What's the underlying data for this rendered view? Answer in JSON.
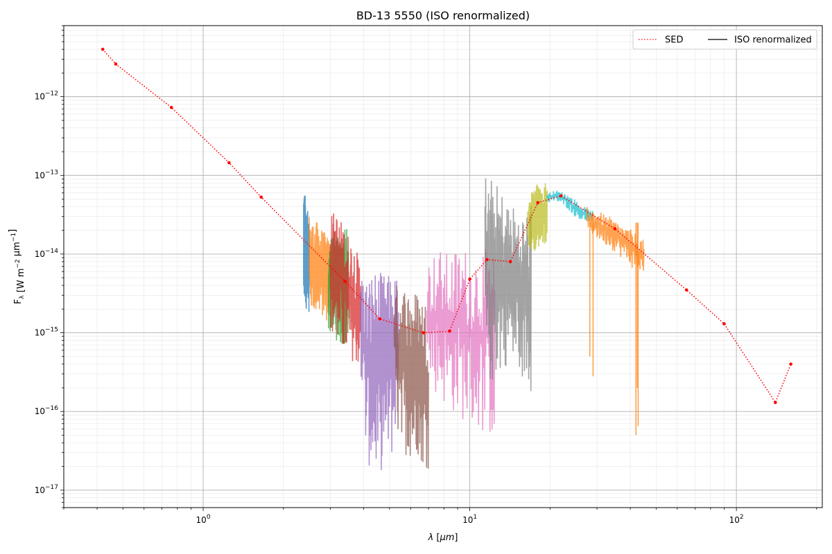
{
  "chart_data": {
    "type": "line",
    "title": "BD-13 5550 (ISO renormalized)",
    "xlabel": "λ [μm]",
    "ylabel": "F_λ [W m^-2 μm^-1]",
    "x_scale": "log",
    "y_scale": "log",
    "xlim": [
      0.3,
      210
    ],
    "ylim": [
      6e-18,
      8e-12
    ],
    "grid": true,
    "legend_position": "top-right",
    "x_ticks": [
      {
        "value": 1,
        "label": "10",
        "exp": "0"
      },
      {
        "value": 10,
        "label": "10",
        "exp": "1"
      },
      {
        "value": 100,
        "label": "10",
        "exp": "2"
      }
    ],
    "y_ticks": [
      {
        "value": 1e-17,
        "label": "10",
        "exp": "−17"
      },
      {
        "value": 1e-16,
        "label": "10",
        "exp": "−16"
      },
      {
        "value": 1e-15,
        "label": "10",
        "exp": "−15"
      },
      {
        "value": 1e-14,
        "label": "10",
        "exp": "−14"
      },
      {
        "value": 1e-13,
        "label": "10",
        "exp": "−13"
      },
      {
        "value": 1e-12,
        "label": "10",
        "exp": "−12"
      }
    ],
    "legend": [
      {
        "name": "SED",
        "color": "#ff0000",
        "style": "dotted"
      },
      {
        "name": "ISO renormalized",
        "color": "#000000",
        "style": "solid"
      }
    ],
    "sed": {
      "name": "SED",
      "color": "#ff0000",
      "x": [
        0.42,
        0.47,
        0.76,
        1.25,
        1.65,
        3.4,
        4.6,
        6.7,
        8.4,
        10.0,
        11.6,
        14.2,
        18.0,
        22.0,
        35.0,
        65.0,
        90.0,
        140.0,
        160.0
      ],
      "y": [
        4e-12,
        2.6e-12,
        7.3e-13,
        1.45e-13,
        5.3e-14,
        4.5e-15,
        1.5e-15,
        1e-15,
        1.05e-15,
        4.8e-15,
        8.5e-15,
        8e-15,
        4.5e-14,
        5.5e-14,
        2.1e-14,
        3.5e-15,
        1.3e-15,
        1.3e-16,
        4e-16
      ]
    },
    "spectra": [
      {
        "color": "#1f77b4",
        "x_range": [
          2.38,
          2.5
        ],
        "upper": [
          7.5e-14,
          6e-14,
          4e-14,
          3.5e-14,
          3e-14
        ],
        "lower": [
          2.2e-15,
          2.1e-15,
          2e-15,
          1.9e-15,
          1.8e-15
        ]
      },
      {
        "color": "#ff7f0e",
        "x_range": [
          2.5,
          3.0
        ],
        "upper": [
          3.3e-14,
          2.5e-14,
          2.6e-14,
          2.1e-14,
          1.8e-14,
          1.5e-14
        ],
        "lower": [
          1.9e-15,
          1.8e-15,
          1.7e-15,
          1.6e-15,
          1.4e-15,
          1.3e-15
        ]
      },
      {
        "color": "#2ca02c",
        "x_range": [
          2.95,
          3.5
        ],
        "upper": [
          1.6e-14,
          2.2e-14,
          1.8e-14,
          1.4e-14,
          2.6e-14,
          3e-14
        ],
        "lower": [
          1e-15,
          9.5e-16,
          8e-16,
          7e-16,
          6e-16,
          5.5e-16
        ]
      },
      {
        "color": "#d62728",
        "x_range": [
          3.0,
          3.9
        ],
        "upper": [
          3.3e-14,
          3.6e-14,
          2.8e-14,
          2.2e-14,
          1.6e-14,
          1.2e-14,
          8e-15
        ],
        "lower": [
          1e-15,
          8e-16,
          6e-16,
          5e-16,
          4.5e-16,
          4e-16,
          3.5e-16
        ]
      },
      {
        "color": "#9467bd",
        "x_range": [
          3.9,
          5.4
        ],
        "upper": [
          6e-15,
          5e-15,
          6.5e-15,
          6e-15,
          5.5e-15,
          5.5e-15,
          5e-15
        ],
        "lower": [
          3e-16,
          1.9e-17,
          2e-17,
          1.4e-17,
          3e-17,
          2.5e-17,
          1.5e-16
        ]
      },
      {
        "color": "#8c564b",
        "x_range": [
          5.2,
          7.0
        ],
        "upper": [
          4e-15,
          4.5e-15,
          4e-15,
          3.5e-15,
          3.5e-15,
          3e-15,
          2.5e-15
        ],
        "lower": [
          1.5e-16,
          3e-17,
          2.8e-17,
          2.5e-17,
          3e-17,
          2e-17,
          1.8e-17
        ]
      },
      {
        "color": "#e377c2",
        "x_range": [
          6.9,
          12.4
        ],
        "upper": [
          8e-15,
          1.2e-14,
          1e-14,
          1.3e-14,
          1.1e-14,
          1.2e-14,
          1e-14
        ],
        "lower": [
          2.5e-16,
          1.5e-16,
          1e-16,
          8e-17,
          6e-17,
          5e-17,
          4.5e-17
        ]
      },
      {
        "color": "#7f7f7f",
        "x_range": [
          11.4,
          17.0
        ],
        "upper": [
          1.1e-13,
          9e-14,
          7e-14,
          5e-14,
          4e-14,
          3.5e-14,
          5e-14
        ],
        "lower": [
          3e-16,
          2e-16,
          3e-16,
          4e-16,
          3e-16,
          2.5e-16,
          1.6e-16
        ]
      },
      {
        "color": "#bcbd22",
        "x_range": [
          16.5,
          19.5
        ],
        "upper": [
          5e-14,
          6.5e-14,
          8e-14,
          6e-14,
          1e-13
        ],
        "lower": [
          1.2e-14,
          1e-14,
          1.1e-14,
          1.3e-14,
          1.4e-14
        ]
      },
      {
        "color": "#17becf",
        "x_range": [
          19.5,
          29.0
        ],
        "upper": [
          6e-14,
          6.5e-14,
          6e-14,
          5e-14,
          4e-14,
          3.5e-14
        ],
        "lower": [
          4.5e-14,
          4.6e-14,
          4e-14,
          3e-14,
          2.6e-14,
          2.5e-14
        ]
      },
      {
        "color": "#ff7f0e",
        "x_range": [
          27.5,
          45.0
        ],
        "upper": [
          4e-14,
          3.5e-14,
          3e-14,
          2.4e-14,
          2e-14,
          1.5e-14
        ],
        "lower": [
          2e-14,
          1.5e-14,
          1.2e-14,
          9e-15,
          6.5e-15,
          5e-15
        ]
      }
    ],
    "spectra_spikes": [
      {
        "x": 28.2,
        "y": 5e-16,
        "color": "#ff7f0e"
      },
      {
        "x": 29.0,
        "y": 2.8e-16,
        "color": "#ff7f0e"
      },
      {
        "x": 42.0,
        "y": 5e-17,
        "color": "#ff7f0e"
      },
      {
        "x": 42.5,
        "y": 2e-16,
        "color": "#ff7f0e"
      },
      {
        "x": 42.8,
        "y": 6.5e-17,
        "color": "#ff7f0e"
      }
    ]
  }
}
